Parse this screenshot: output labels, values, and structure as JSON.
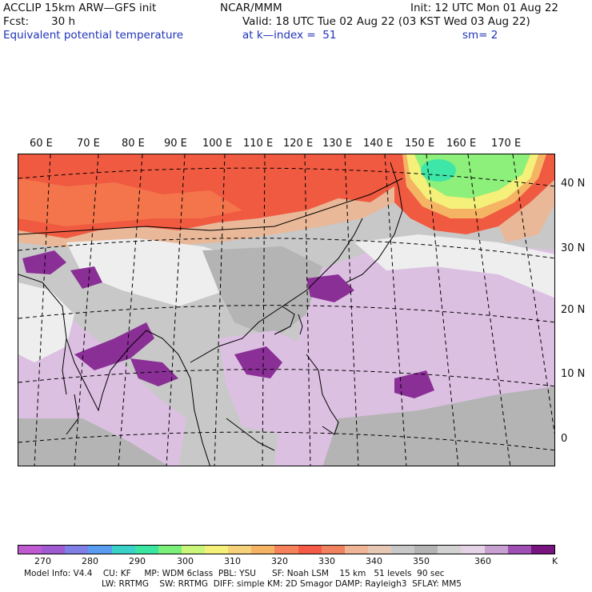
{
  "header": {
    "model": "ACCLIP 15km ARW—GFS init",
    "org": "NCAR/MMM",
    "init": "Init: 12 UTC Mon 01 Aug 22",
    "fcst_label": "Fcst:",
    "fcst_value": "30 h",
    "valid": "Valid: 18 UTC Tue 02 Aug 22 (03 KST Wed 03 Aug 22)",
    "field": "Equivalent potential temperature",
    "level": "at k—index =  51",
    "smooth": "sm= 2"
  },
  "map": {
    "lon_labels": [
      "60 E",
      "70 E",
      "80 E",
      "90 E",
      "100 E",
      "110 E",
      "120 E",
      "130 E",
      "140 E",
      "150 E",
      "160 E",
      "170 E"
    ],
    "lat_labels": [
      "40 N",
      "30 N",
      "20 N",
      "10 N",
      "0"
    ],
    "colors": {
      "ocean_white": "#eeeeee",
      "light_gray": "#c8c8c8",
      "mid_gray": "#b4b4b4",
      "light_purple": "#dcc0e2",
      "mid_purple": "#a455b8",
      "dark_purple": "#8a2f96",
      "tan": "#e8b898",
      "red": "#f05a40",
      "orange": "#f47a4e",
      "yellow": "#f4f07a",
      "green": "#8cf07a",
      "teal": "#3ee6a8",
      "land_outline": "#000000"
    }
  },
  "colorbar": {
    "colors": [
      "#c05ad2",
      "#a05ad2",
      "#7f7fe6",
      "#5a9cf0",
      "#3ad2c8",
      "#3ae6a0",
      "#7af07a",
      "#c8f57a",
      "#f5f07a",
      "#f5d27a",
      "#f5b464",
      "#f5825a",
      "#f55a46",
      "#f08260",
      "#f0b496",
      "#e6c8b4",
      "#c8c8c8",
      "#b4b4b4",
      "#d2d2d2",
      "#e6d2e6",
      "#c8a0d2",
      "#a050b4",
      "#78147f"
    ],
    "labels": [
      "270",
      "280",
      "290",
      "300",
      "310",
      "320",
      "330",
      "340",
      "350",
      "360"
    ],
    "unit": "K"
  },
  "footer": {
    "line1": "Model Info: V4.4    CU: KF     MP: WDM 6class  PBL: YSU      SF: Noah LSM    15 km   51 levels  90 sec",
    "line2": "LW: RRTMG    SW: RRTMG  DIFF: simple KM: 2D Smagor DAMP: Rayleigh3  SFLAY: MM5"
  }
}
